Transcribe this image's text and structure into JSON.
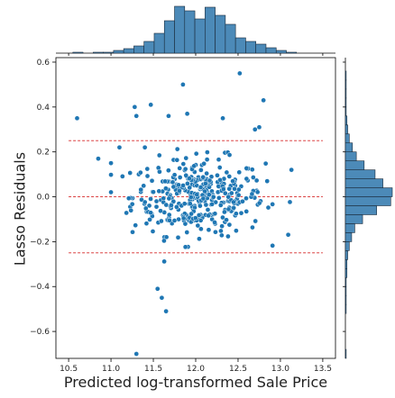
{
  "colors": {
    "points": "#1f77b4",
    "point_edge": "#ffffff",
    "hist_fill": "#4c8ab8",
    "hist_edge": "#1a2a3a",
    "reference_lines": "#d62728",
    "axes": "#000000"
  },
  "chart_data": {
    "type": "scatter",
    "subtype": "jointplot with marginal histograms",
    "title": "",
    "xlabel": "Predicted log-transformed Sale Price",
    "ylabel": "Lasso Residuals",
    "xlim": [
      10.35,
      13.65
    ],
    "ylim": [
      -0.72,
      0.62
    ],
    "x_ticks": [
      "10.5",
      "11.0",
      "11.5",
      "12.0",
      "12.5",
      "13.0",
      "13.5"
    ],
    "y_ticks": [
      "−0.6",
      "−0.4",
      "−0.2",
      "0.0",
      "0.2",
      "0.4",
      "0.6"
    ],
    "grid": false,
    "legend": "none",
    "reference_lines": [
      {
        "y": 0.25,
        "x_range": [
          10.5,
          13.5
        ],
        "style": "dashed"
      },
      {
        "y": 0.0,
        "x_range": [
          10.5,
          13.5
        ],
        "style": "dashed"
      },
      {
        "y": -0.25,
        "x_range": [
          10.5,
          13.5
        ],
        "style": "dashed"
      }
    ],
    "outliers": {
      "x": [
        10.6,
        11.28,
        11.3,
        11.47,
        11.55,
        11.6,
        11.65,
        11.85,
        11.9,
        12.32,
        12.52,
        12.8,
        11.3,
        11.68,
        10.85,
        11.0,
        11.1,
        11.4,
        12.75,
        13.13,
        12.7
      ],
      "y": [
        0.35,
        0.4,
        -0.7,
        0.41,
        -0.41,
        -0.45,
        -0.51,
        0.5,
        0.37,
        0.35,
        0.55,
        0.43,
        0.36,
        0.36,
        0.17,
        0.15,
        0.22,
        0.22,
        0.31,
        0.12,
        0.3
      ]
    },
    "core": {
      "count": 360,
      "x_center": 12.03,
      "x_spread": 0.39,
      "y_center": 0.0,
      "y_spread": 0.085,
      "x_range": [
        11.0,
        13.15
      ],
      "y_range": [
        -0.33,
        0.3
      ]
    },
    "x_hist": {
      "bin_edges": [
        10.55,
        10.67,
        10.79,
        10.91,
        11.03,
        11.15,
        11.27,
        11.39,
        11.51,
        11.63,
        11.75,
        11.87,
        11.99,
        12.11,
        12.23,
        12.35,
        12.47,
        12.59,
        12.71,
        12.83,
        12.95,
        13.07,
        13.19
      ],
      "counts": [
        1,
        0,
        1,
        1,
        3,
        5,
        8,
        13,
        22,
        36,
        52,
        47,
        38,
        51,
        42,
        32,
        17,
        13,
        10,
        6,
        3,
        1
      ]
    },
    "y_hist": {
      "bin_edges": [
        -0.72,
        -0.68,
        -0.64,
        -0.6,
        -0.56,
        -0.52,
        -0.48,
        -0.44,
        -0.4,
        -0.36,
        -0.32,
        -0.28,
        -0.24,
        -0.2,
        -0.16,
        -0.12,
        -0.08,
        -0.04,
        0.0,
        0.04,
        0.08,
        0.12,
        0.16,
        0.2,
        0.24,
        0.28,
        0.32,
        0.36,
        0.4,
        0.44,
        0.48,
        0.52,
        0.56
      ],
      "counts": [
        1,
        0,
        0,
        0,
        0,
        1,
        1,
        1,
        1,
        2,
        2,
        3,
        5,
        8,
        12,
        22,
        40,
        58,
        60,
        48,
        38,
        24,
        14,
        9,
        5,
        3,
        2,
        1,
        1,
        1,
        1,
        1
      ]
    }
  }
}
